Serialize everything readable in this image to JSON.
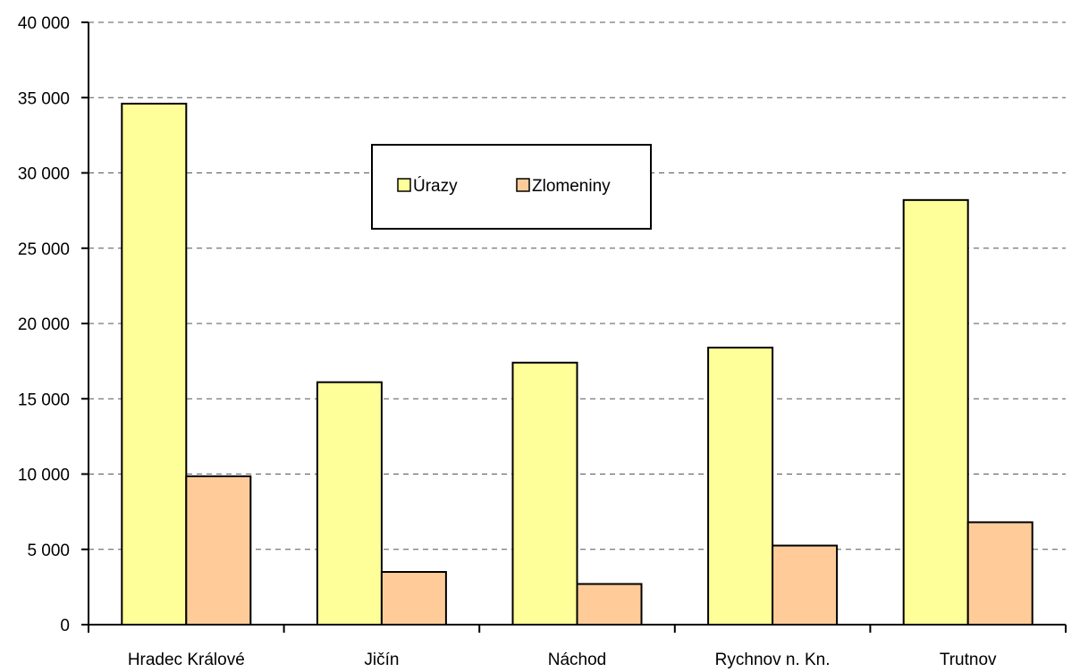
{
  "chart_data": {
    "type": "bar",
    "categories": [
      "Hradec Králové",
      "Jičín",
      "Náchod",
      "Rychnov n. Kn.",
      "Trutnov"
    ],
    "series": [
      {
        "name": "Úrazy",
        "color": "#FFFF99",
        "values": [
          34600,
          16100,
          17400,
          18400,
          28200
        ]
      },
      {
        "name": "Zlomeniny",
        "color": "#FFCC99",
        "values": [
          9850,
          3500,
          2700,
          5250,
          6800
        ]
      }
    ],
    "ylim": [
      0,
      40000
    ],
    "yticks": [
      0,
      5000,
      10000,
      15000,
      20000,
      25000,
      30000,
      35000,
      40000
    ],
    "ytick_labels": [
      "0",
      "5 000",
      "10 000",
      "15 000",
      "20 000",
      "25 000",
      "30 000",
      "35 000",
      "40 000"
    ],
    "grid": true,
    "legend_position": "top-center"
  }
}
